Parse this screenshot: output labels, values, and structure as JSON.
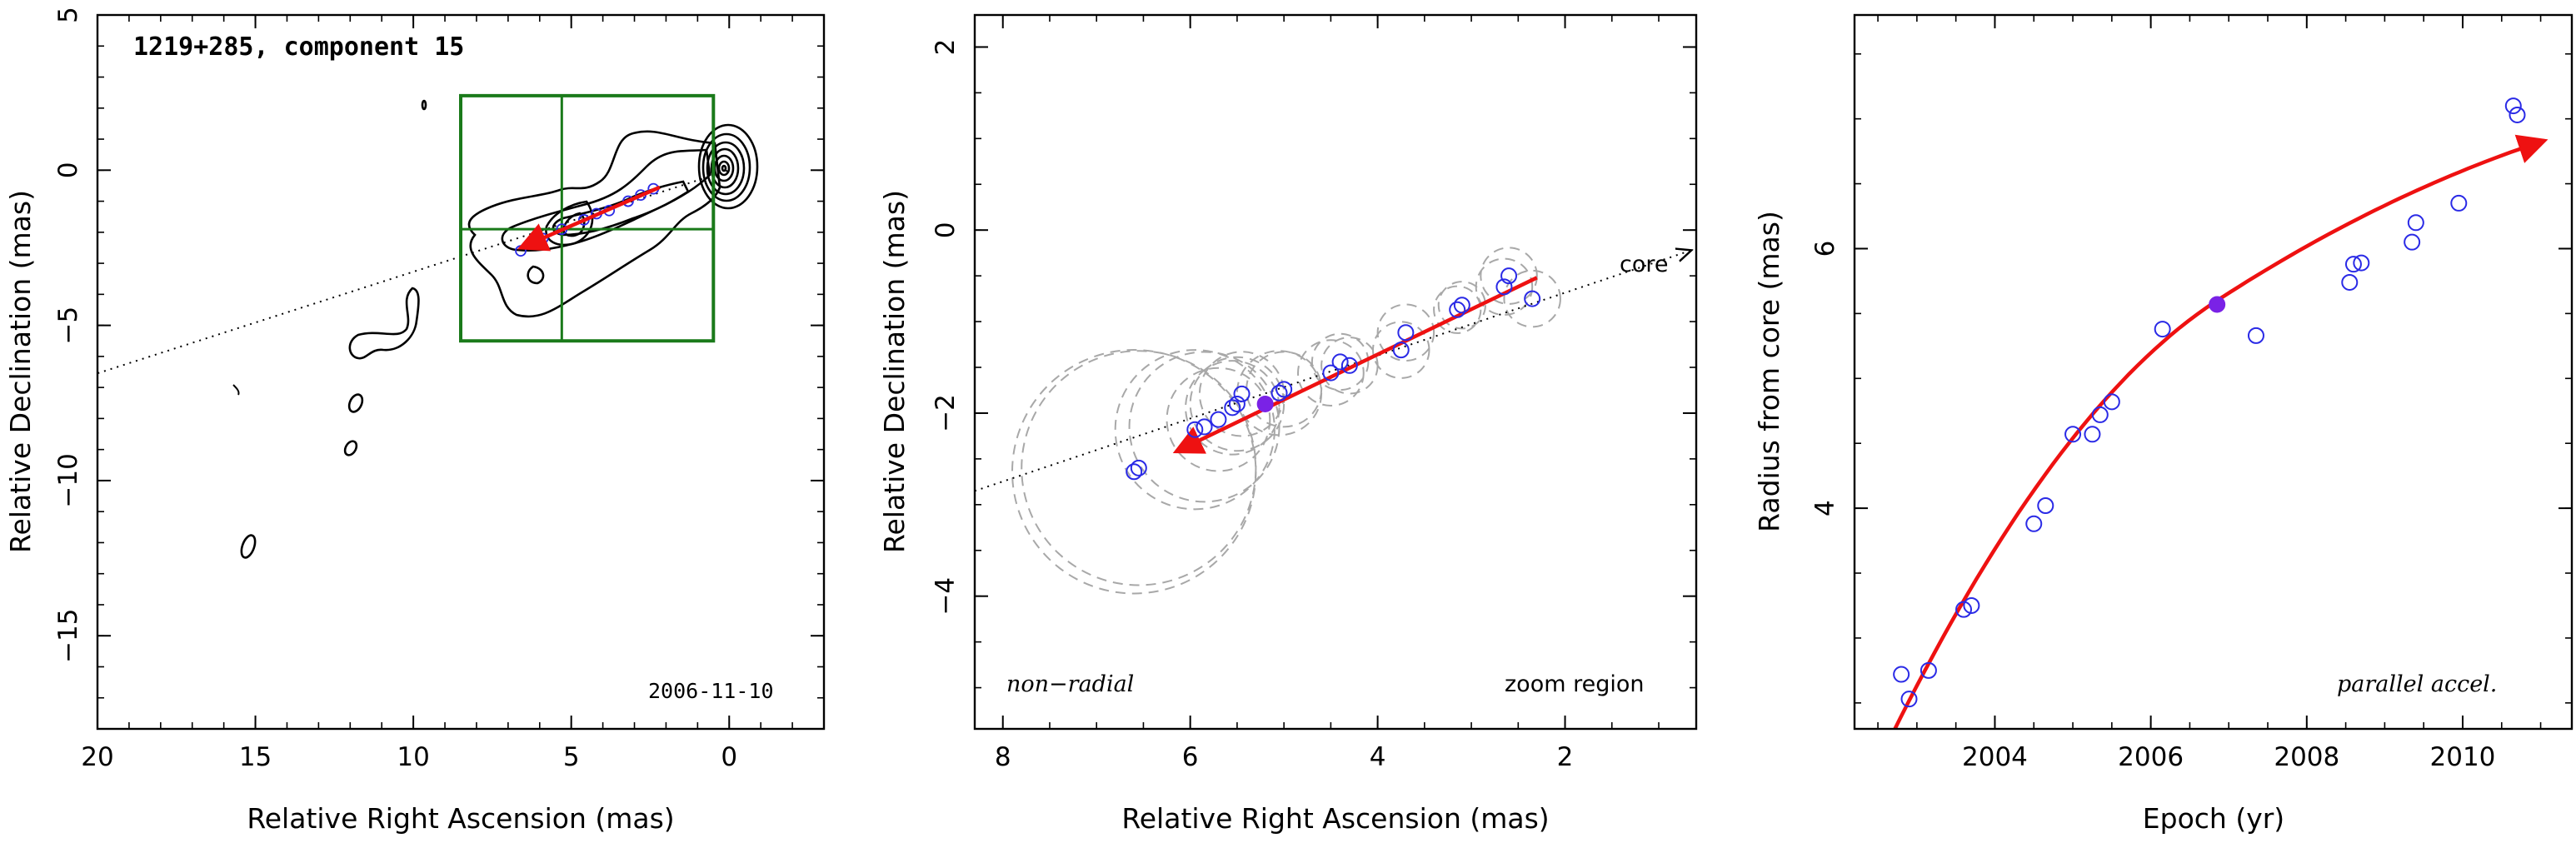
{
  "colors": {
    "axes": "#000000",
    "contour": "#000000",
    "box": "#1a7a1a",
    "arrow": "#ee1111",
    "points": "#2a2ae6",
    "filled_point": "#7a22e6",
    "circles": "#a8a8a8"
  },
  "chart_data": [
    {
      "type": "contour",
      "title": "1219+285, component 15",
      "date_label": "2006-11-10",
      "xlabel": "Relative Right Ascension (mas)",
      "ylabel": "Relative Declination (mas)",
      "xlim": [
        20,
        -3
      ],
      "ylim": [
        -18,
        5
      ],
      "xticks": [
        20,
        15,
        10,
        5,
        0
      ],
      "yticks": [
        5,
        0,
        -5,
        -10,
        -15
      ],
      "xtick_labels": [
        "20",
        "15",
        "10",
        "5",
        "0"
      ],
      "ytick_labels": [
        "5",
        "0",
        "−5",
        "−10",
        "−15"
      ],
      "zoom_box": {
        "x": [
          8.5,
          0.5
        ],
        "y": [
          -5.5,
          2.4
        ],
        "divider_x": 5.3,
        "divider_y": -1.9
      },
      "trend_line": {
        "from": [
          22,
          -7.2
        ],
        "to": [
          0,
          0
        ]
      },
      "motion_arrow": {
        "from": [
          2.2,
          -0.55
        ],
        "to": [
          6.6,
          -2.5
        ]
      },
      "positions": [
        {
          "x": 6.6,
          "y": -2.6
        },
        {
          "x": 5.9,
          "y": -2.2
        },
        {
          "x": 5.3,
          "y": -1.9
        },
        {
          "x": 4.6,
          "y": -1.6
        },
        {
          "x": 4.2,
          "y": -1.4
        },
        {
          "x": 3.8,
          "y": -1.3
        },
        {
          "x": 3.2,
          "y": -1.0
        },
        {
          "x": 2.8,
          "y": -0.8
        },
        {
          "x": 2.4,
          "y": -0.6
        }
      ]
    },
    {
      "type": "scatter",
      "note_left": "non−radial",
      "note_right": "zoom region",
      "core_label": "core",
      "xlabel": "Relative Right Ascension (mas)",
      "ylabel": "Relative Declination (mas)",
      "xlim": [
        8.3,
        0.6
      ],
      "ylim": [
        -5.45,
        2.35
      ],
      "xticks": [
        8,
        6,
        4,
        2
      ],
      "yticks": [
        2,
        0,
        -2,
        -4
      ],
      "xtick_labels": [
        "8",
        "6",
        "4",
        "2"
      ],
      "ytick_labels": [
        "2",
        "0",
        "−2",
        "−4"
      ],
      "trend_line": {
        "from": [
          8.3,
          -2.85
        ],
        "to": [
          0.65,
          -0.22
        ]
      },
      "motion_arrow": {
        "from": [
          2.3,
          -0.52
        ],
        "to": [
          6.15,
          -2.42
        ]
      },
      "points": [
        {
          "x": 6.6,
          "y": -2.64,
          "r": 1.3
        },
        {
          "x": 6.55,
          "y": -2.6,
          "r": 1.25
        },
        {
          "x": 5.95,
          "y": -2.18,
          "r": 0.85
        },
        {
          "x": 5.85,
          "y": -2.15,
          "r": 0.8
        },
        {
          "x": 5.7,
          "y": -2.07,
          "r": 0.55
        },
        {
          "x": 5.55,
          "y": -1.94,
          "r": 0.5
        },
        {
          "x": 5.5,
          "y": -1.9,
          "r": 0.5
        },
        {
          "x": 5.45,
          "y": -1.79,
          "r": 0.45
        },
        {
          "x": 5.05,
          "y": -1.78,
          "r": 0.45
        },
        {
          "x": 5.0,
          "y": -1.74,
          "r": 0.4
        },
        {
          "x": 4.5,
          "y": -1.56,
          "r": 0.35
        },
        {
          "x": 4.4,
          "y": -1.44,
          "r": 0.3
        },
        {
          "x": 4.3,
          "y": -1.48,
          "r": 0.3
        },
        {
          "x": 3.75,
          "y": -1.31,
          "r": 0.3
        },
        {
          "x": 3.7,
          "y": -1.12,
          "r": 0.3
        },
        {
          "x": 3.15,
          "y": -0.87,
          "r": 0.25
        },
        {
          "x": 3.1,
          "y": -0.82,
          "r": 0.25
        },
        {
          "x": 2.65,
          "y": -0.62,
          "r": 0.3
        },
        {
          "x": 2.6,
          "y": -0.5,
          "r": 0.3
        },
        {
          "x": 2.35,
          "y": -0.75,
          "r": 0.3
        }
      ],
      "highlight_point": {
        "x": 5.2,
        "y": -1.9
      }
    },
    {
      "type": "scatter",
      "note": "parallel accel.",
      "xlabel": "Epoch (yr)",
      "ylabel": "Radius from core (mas)",
      "xlim": [
        2002.2,
        2011.4
      ],
      "ylim": [
        2.3,
        7.8
      ],
      "xticks": [
        2004,
        2006,
        2008,
        2010
      ],
      "yticks": [
        4,
        6
      ],
      "xtick_labels": [
        "2004",
        "2006",
        "2008",
        "2010"
      ],
      "ytick_labels": [
        "4",
        "6"
      ],
      "fit_curve": {
        "x": [
          2002.35,
          2011.05
        ],
        "coeffs": {
          "t0": 2006.85,
          "a": 5.6,
          "b": 0.39,
          "c": -0.023
        }
      },
      "points": [
        {
          "x": 2002.8,
          "y": 2.72
        },
        {
          "x": 2002.9,
          "y": 2.53
        },
        {
          "x": 2003.15,
          "y": 2.75
        },
        {
          "x": 2003.6,
          "y": 3.22
        },
        {
          "x": 2003.7,
          "y": 3.25
        },
        {
          "x": 2004.5,
          "y": 3.88
        },
        {
          "x": 2004.65,
          "y": 4.02
        },
        {
          "x": 2005.0,
          "y": 4.57
        },
        {
          "x": 2005.25,
          "y": 4.57
        },
        {
          "x": 2005.35,
          "y": 4.72
        },
        {
          "x": 2005.5,
          "y": 4.82
        },
        {
          "x": 2006.15,
          "y": 5.38
        },
        {
          "x": 2007.35,
          "y": 5.33
        },
        {
          "x": 2008.55,
          "y": 5.74
        },
        {
          "x": 2008.6,
          "y": 5.88
        },
        {
          "x": 2008.7,
          "y": 5.89
        },
        {
          "x": 2009.35,
          "y": 6.05
        },
        {
          "x": 2009.4,
          "y": 6.2
        },
        {
          "x": 2009.95,
          "y": 6.35
        },
        {
          "x": 2010.65,
          "y": 7.1
        },
        {
          "x": 2010.7,
          "y": 7.03
        }
      ],
      "highlight_point": {
        "x": 2006.85,
        "y": 5.57
      }
    }
  ]
}
